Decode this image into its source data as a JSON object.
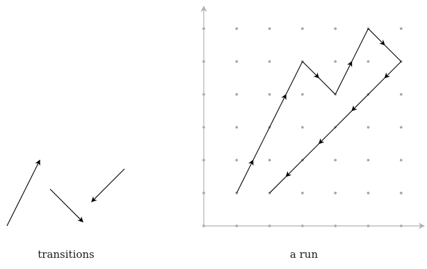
{
  "captions": {
    "left": "transitions",
    "right": "a run"
  },
  "transitions": [
    {
      "dx": 1,
      "dy": 2
    },
    {
      "dx": 1,
      "dy": -1
    },
    {
      "dx": -1,
      "dy": -1
    }
  ],
  "run": {
    "start": [
      1,
      1
    ],
    "points": [
      [
        1,
        1
      ],
      [
        2,
        3
      ],
      [
        3,
        5
      ],
      [
        4,
        4
      ],
      [
        5,
        6
      ],
      [
        6,
        5
      ],
      [
        5,
        4
      ],
      [
        4,
        3
      ],
      [
        3,
        2
      ],
      [
        2,
        1
      ]
    ]
  },
  "grid": {
    "cols": 7,
    "rows": 7
  },
  "colors": {
    "arrow": "#000000",
    "axis": "#b0b0b0",
    "dot": "#a8a8a8"
  }
}
